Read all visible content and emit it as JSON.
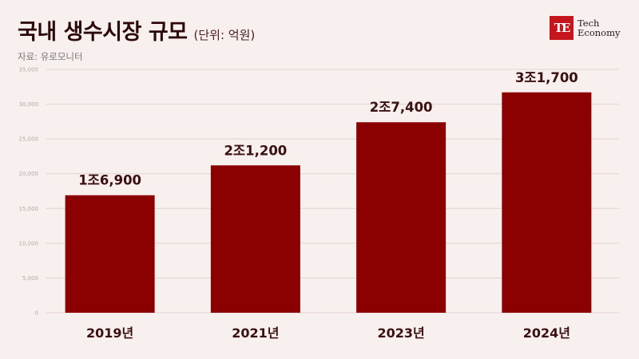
{
  "header": {
    "title": "국내 생수시장 규모",
    "unit": "(단위: 억원)",
    "source": "자료: 유로모니터"
  },
  "logo": {
    "mark": "TE",
    "line1": "Tech",
    "line2": "Economy",
    "color": "#c4161c"
  },
  "chart_data": {
    "type": "bar",
    "title": "국내 생수시장 규모",
    "categories": [
      "2019년",
      "2021년",
      "2023년",
      "2024년"
    ],
    "values": [
      16900,
      21200,
      27400,
      31700
    ],
    "value_labels": [
      "1조6,900",
      "2조1,200",
      "2조7,400",
      "3조1,700"
    ],
    "ylim": [
      0,
      35000
    ],
    "yticks": [
      0,
      5000,
      10000,
      15000,
      20000,
      25000,
      30000,
      35000
    ],
    "ytick_labels": [
      "0",
      "5,000",
      "10,000",
      "15,000",
      "20,000",
      "25,000",
      "30,000",
      "35,000"
    ],
    "grid": true,
    "bar_color": "#8b0000"
  }
}
